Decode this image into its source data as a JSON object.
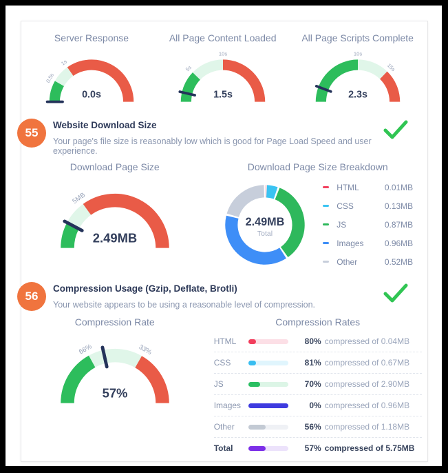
{
  "colors": {
    "green": "#2dbd5c",
    "lightgreen": "#e0f6e9",
    "red": "#e95b47",
    "needle": "#24335a",
    "value_text": "#333f5c",
    "tick_text": "#98a3b9",
    "center_sub_text": "#a3adc2",
    "donut_red": "#f2415f",
    "donut_cyan": "#3ac3f2",
    "donut_green": "#2eb85c",
    "donut_blue": "#3e8ef7",
    "donut_gray": "#c7cedb",
    "bar_html": "#f23d5c",
    "bar_html_track": "#fcdfe6",
    "bar_css": "#38bdf0",
    "bar_css_track": "#e0f5fd",
    "bar_js": "#2abf62",
    "bar_js_track": "#dcf5e6",
    "bar_images": "#3e3bdf",
    "bar_images_track": "#e5e4fb",
    "bar_other": "#c3cad4",
    "bar_other_track": "#eff1f5",
    "bar_total": "#7c2fe8",
    "bar_total_track": "#ece2fb",
    "badge": "#f0743e",
    "check": "#30c553"
  },
  "sections": {
    "s55": {
      "badge": "55",
      "title": "Website Download Size",
      "description": "Your page's file size is reasonably low which is good for Page Load Speed and user experience.",
      "status": "check"
    },
    "s56": {
      "badge": "56",
      "title": "Compression Usage (Gzip, Deflate, Brotli)",
      "description": "Your website appears to be using a reasonable level of compression.",
      "status": "check"
    }
  },
  "chart_data": [
    {
      "id": "server-response",
      "type": "gauge",
      "title": "Server Response",
      "value": 0.0,
      "unit": "s",
      "value_label": "0.0s",
      "ticks": [
        {
          "label": "0.5s",
          "pos": 0.165
        },
        {
          "label": "1s",
          "pos": 0.305
        }
      ],
      "segments": [
        {
          "color": "green",
          "from": 0,
          "to": 0.165
        },
        {
          "color": "lightgreen",
          "from": 0.165,
          "to": 0.305
        },
        {
          "color": "red",
          "from": 0.305,
          "to": 1
        }
      ],
      "needle_pos": 0.0
    },
    {
      "id": "content-loaded",
      "type": "gauge",
      "title": "All Page Content Loaded",
      "value": 1.5,
      "unit": "s",
      "value_label": "1.5s",
      "ticks": [
        {
          "label": "5s",
          "pos": 0.245
        },
        {
          "label": "10s",
          "pos": 0.5
        }
      ],
      "segments": [
        {
          "color": "green",
          "from": 0,
          "to": 0.245
        },
        {
          "color": "lightgreen",
          "from": 0.245,
          "to": 0.5
        },
        {
          "color": "red",
          "from": 0.5,
          "to": 1
        }
      ],
      "needle_pos": 0.073
    },
    {
      "id": "scripts-complete",
      "type": "gauge",
      "title": "All Page Scripts Complete",
      "value": 2.3,
      "unit": "s",
      "value_label": "2.3s",
      "ticks": [
        {
          "label": "10s",
          "pos": 0.5
        },
        {
          "label": "15s",
          "pos": 0.745
        }
      ],
      "segments": [
        {
          "color": "green",
          "from": 0,
          "to": 0.5
        },
        {
          "color": "lightgreen",
          "from": 0.5,
          "to": 0.745
        },
        {
          "color": "red",
          "from": 0.745,
          "to": 1
        }
      ],
      "needle_pos": 0.115
    },
    {
      "id": "download-size",
      "type": "gauge",
      "title": "Download Page Size",
      "value": 2.49,
      "unit": "MB",
      "value_label": "2.49MB",
      "ticks": [
        {
          "label": "5MB",
          "pos": 0.3
        }
      ],
      "segments": [
        {
          "color": "green",
          "from": 0,
          "to": 0.15
        },
        {
          "color": "lightgreen",
          "from": 0.15,
          "to": 0.3
        },
        {
          "color": "red",
          "from": 0.3,
          "to": 1
        }
      ],
      "needle_pos": 0.155
    },
    {
      "id": "size-breakdown",
      "type": "donut",
      "title": "Download Page Size Breakdown",
      "center_value": "2.49MB",
      "center_label": "Total",
      "total_mb": 2.49,
      "slices": [
        {
          "label": "HTML",
          "value_mb": 0.01,
          "value_label": "0.01MB",
          "color": "donut_red"
        },
        {
          "label": "CSS",
          "value_mb": 0.13,
          "value_label": "0.13MB",
          "color": "donut_cyan"
        },
        {
          "label": "JS",
          "value_mb": 0.87,
          "value_label": "0.87MB",
          "color": "donut_green"
        },
        {
          "label": "Images",
          "value_mb": 0.96,
          "value_label": "0.96MB",
          "color": "donut_blue"
        },
        {
          "label": "Other",
          "value_mb": 0.52,
          "value_label": "0.52MB",
          "color": "donut_gray"
        }
      ]
    },
    {
      "id": "compression-rate",
      "type": "gauge",
      "title": "Compression Rate",
      "value": 57,
      "unit": "%",
      "value_label": "57%",
      "ticks": [
        {
          "label": "66%",
          "pos": 0.34
        },
        {
          "label": "33%",
          "pos": 0.665
        }
      ],
      "segments": [
        {
          "color": "green",
          "from": 0,
          "to": 0.34
        },
        {
          "color": "lightgreen",
          "from": 0.34,
          "to": 0.665
        },
        {
          "color": "red",
          "from": 0.665,
          "to": 1
        }
      ],
      "needle_pos": 0.43
    },
    {
      "id": "compression-rates",
      "type": "bars",
      "title": "Compression Rates",
      "rows": [
        {
          "label": "HTML",
          "percent": 80,
          "percent_label": "80%",
          "suffix": "compressed of 0.04MB",
          "size_mb": 0.04,
          "color": "bar_html",
          "track": "bar_html_track",
          "bold": false
        },
        {
          "label": "CSS",
          "percent": 81,
          "percent_label": "81%",
          "suffix": "compressed of 0.67MB",
          "size_mb": 0.67,
          "color": "bar_css",
          "track": "bar_css_track",
          "bold": false
        },
        {
          "label": "JS",
          "percent": 70,
          "percent_label": "70%",
          "suffix": "compressed of 2.90MB",
          "size_mb": 2.9,
          "color": "bar_js",
          "track": "bar_js_track",
          "bold": false
        },
        {
          "label": "Images",
          "percent": 0,
          "percent_label": "0%",
          "suffix": "compressed of 0.96MB",
          "size_mb": 0.96,
          "color": "bar_images",
          "track": "bar_images_track",
          "bold": false
        },
        {
          "label": "Other",
          "percent": 56,
          "percent_label": "56%",
          "suffix": "compressed of 1.18MB",
          "size_mb": 1.18,
          "color": "bar_other",
          "track": "bar_other_track",
          "bold": false
        },
        {
          "label": "Total",
          "percent": 57,
          "percent_label": "57%",
          "suffix": "compressed of 5.75MB",
          "size_mb": 5.75,
          "color": "bar_total",
          "track": "bar_total_track",
          "bold": true
        }
      ]
    }
  ]
}
